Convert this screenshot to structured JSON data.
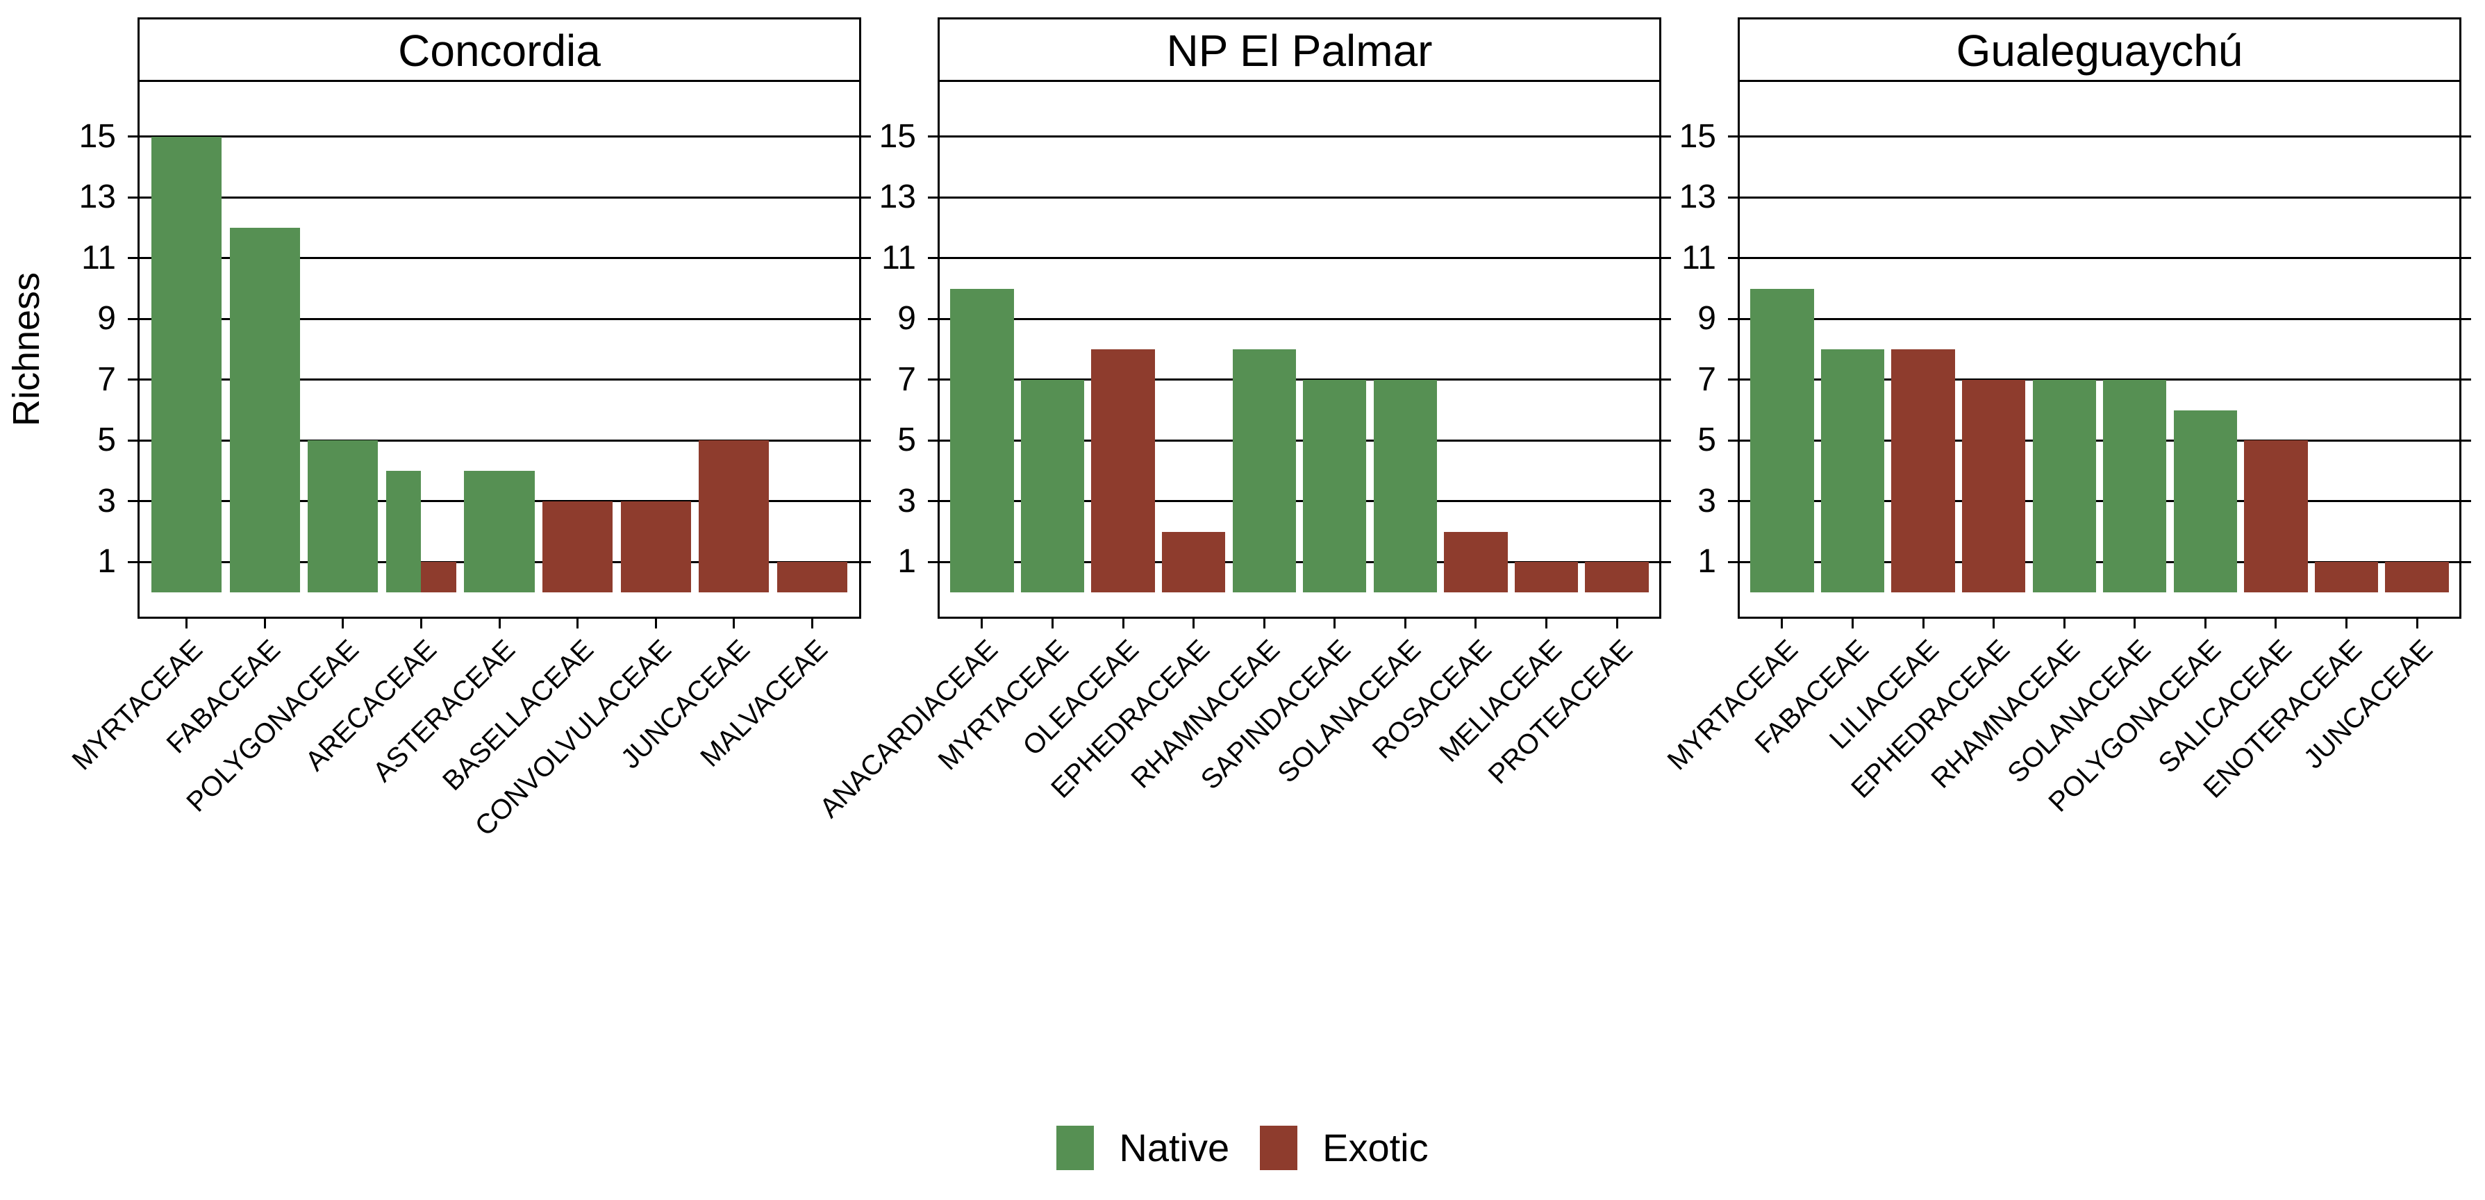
{
  "chart_data": {
    "type": "bar",
    "title": "",
    "xlabel": "",
    "ylabel": "Richness",
    "ylim": [
      0,
      16.8
    ],
    "yticks": [
      1,
      3,
      5,
      7,
      9,
      11,
      13,
      15
    ],
    "grid": "horizontal-black-lines",
    "legend_position": "bottom-center",
    "bar_width_fraction": 0.9,
    "series_colors": {
      "Native": "#569053",
      "Exotic": "#8e3c2d"
    },
    "legend": [
      {
        "label": "Native",
        "color": "#569053"
      },
      {
        "label": "Exotic",
        "color": "#8e3c2d"
      }
    ],
    "facets": [
      {
        "title": "Concordia",
        "categories": [
          {
            "family": "MYRTACEAE",
            "values": [
              {
                "status": "Native",
                "richness": 15
              }
            ]
          },
          {
            "family": "FABACEAE",
            "values": [
              {
                "status": "Native",
                "richness": 12
              }
            ]
          },
          {
            "family": "POLYGONACEAE",
            "values": [
              {
                "status": "Native",
                "richness": 5
              }
            ]
          },
          {
            "family": "ARECACEAE",
            "values": [
              {
                "status": "Native",
                "richness": 4
              },
              {
                "status": "Exotic",
                "richness": 1
              }
            ]
          },
          {
            "family": "ASTERACEAE",
            "values": [
              {
                "status": "Native",
                "richness": 4
              }
            ]
          },
          {
            "family": "BASELLACEAE",
            "values": [
              {
                "status": "Exotic",
                "richness": 3
              }
            ]
          },
          {
            "family": "CONVOLVULACEAE",
            "values": [
              {
                "status": "Exotic",
                "richness": 3
              }
            ]
          },
          {
            "family": "JUNCACEAE",
            "values": [
              {
                "status": "Exotic",
                "richness": 5
              }
            ]
          },
          {
            "family": "MALVACEAE",
            "values": [
              {
                "status": "Exotic",
                "richness": 1
              }
            ]
          }
        ]
      },
      {
        "title": "NP El Palmar",
        "categories": [
          {
            "family": "ANACARDIACEAE",
            "values": [
              {
                "status": "Native",
                "richness": 10
              }
            ]
          },
          {
            "family": "MYRTACEAE",
            "values": [
              {
                "status": "Native",
                "richness": 7
              }
            ]
          },
          {
            "family": "OLEACEAE",
            "values": [
              {
                "status": "Exotic",
                "richness": 8
              }
            ]
          },
          {
            "family": "EPHEDRACEAE",
            "values": [
              {
                "status": "Exotic",
                "richness": 2
              }
            ]
          },
          {
            "family": "RHAMNACEAE",
            "values": [
              {
                "status": "Native",
                "richness": 8
              }
            ]
          },
          {
            "family": "SAPINDACEAE",
            "values": [
              {
                "status": "Native",
                "richness": 7
              }
            ]
          },
          {
            "family": "SOLANACEAE",
            "values": [
              {
                "status": "Native",
                "richness": 7
              }
            ]
          },
          {
            "family": "ROSACEAE",
            "values": [
              {
                "status": "Exotic",
                "richness": 2
              }
            ]
          },
          {
            "family": "MELIACEAE",
            "values": [
              {
                "status": "Exotic",
                "richness": 1
              }
            ]
          },
          {
            "family": "PROTEACEAE",
            "values": [
              {
                "status": "Exotic",
                "richness": 1
              }
            ]
          }
        ]
      },
      {
        "title": "Gualeguaychú",
        "categories": [
          {
            "family": "MYRTACEAE",
            "values": [
              {
                "status": "Native",
                "richness": 10
              }
            ]
          },
          {
            "family": "FABACEAE",
            "values": [
              {
                "status": "Native",
                "richness": 8
              }
            ]
          },
          {
            "family": "LILIACEAE",
            "values": [
              {
                "status": "Exotic",
                "richness": 8
              }
            ]
          },
          {
            "family": "EPHEDRACEAE",
            "values": [
              {
                "status": "Exotic",
                "richness": 7
              }
            ]
          },
          {
            "family": "RHAMNACEAE",
            "values": [
              {
                "status": "Native",
                "richness": 7
              }
            ]
          },
          {
            "family": "SOLANACEAE",
            "values": [
              {
                "status": "Native",
                "richness": 7
              }
            ]
          },
          {
            "family": "POLYGONACEAE",
            "values": [
              {
                "status": "Native",
                "richness": 6
              }
            ]
          },
          {
            "family": "SALICACEAE",
            "values": [
              {
                "status": "Exotic",
                "richness": 5
              }
            ]
          },
          {
            "family": "ENOTERACEAE",
            "values": [
              {
                "status": "Exotic",
                "richness": 1
              }
            ]
          },
          {
            "family": "JUNCACEAE",
            "values": [
              {
                "status": "Exotic",
                "richness": 1
              }
            ]
          }
        ]
      }
    ]
  }
}
